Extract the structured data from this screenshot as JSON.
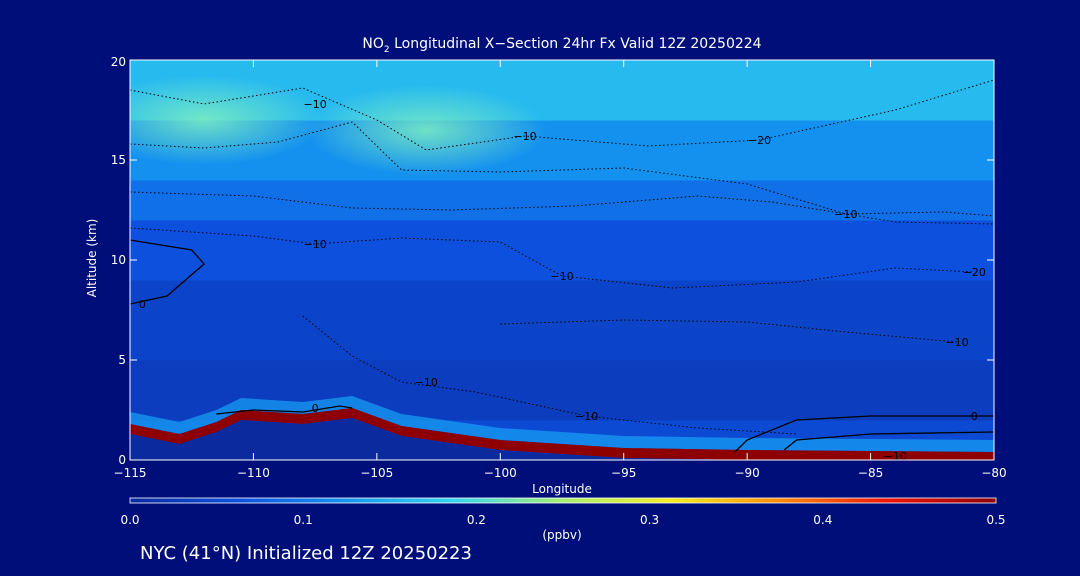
{
  "chart_data": {
    "type": "heatmap",
    "title_main": "NO",
    "title_sub": "2",
    "title_rest": " Longitudinal X−Section 24hr  Fx Valid 12Z 20250224",
    "xlabel": "Longitude",
    "ylabel": "Altitude (km)",
    "xlim": [
      -115,
      -80
    ],
    "ylim": [
      0,
      20
    ],
    "x_ticks": [
      -115,
      -110,
      -105,
      -100,
      -95,
      -90,
      -85,
      -80
    ],
    "x_tick_labels": [
      "−115",
      "−110",
      "−105",
      "−100",
      "−95",
      "−90",
      "−85",
      "−80"
    ],
    "y_ticks": [
      0,
      5,
      10,
      15,
      20
    ],
    "y_tick_labels": [
      "0",
      "5",
      "10",
      "15",
      "20"
    ],
    "colorbar": {
      "label": "(ppbv)",
      "range": [
        0.0,
        0.5
      ],
      "ticks": [
        0.0,
        0.1,
        0.2,
        0.3,
        0.4,
        0.5
      ],
      "tick_labels": [
        "0.0",
        "0.1",
        "0.2",
        "0.3",
        "0.4",
        "0.5"
      ],
      "colors": [
        "#0a2a9e",
        "#0c52e0",
        "#1596f0",
        "#35d6ee",
        "#a6f070",
        "#f5ee20",
        "#ff8a00",
        "#f01400",
        "#8e0000"
      ]
    },
    "layers": [
      {
        "altitude_range": [
          0,
          2
        ],
        "value": 0.05
      },
      {
        "altitude_range": [
          2,
          5
        ],
        "value": 0.03
      },
      {
        "altitude_range": [
          5,
          9
        ],
        "value": 0.04
      },
      {
        "altitude_range": [
          9,
          12
        ],
        "value": 0.06
      },
      {
        "altitude_range": [
          12,
          14
        ],
        "value": 0.09
      },
      {
        "altitude_range": [
          14,
          17
        ],
        "value": 0.12
      },
      {
        "altitude_range": [
          17,
          20
        ],
        "value": 0.16
      }
    ],
    "highlights": [
      {
        "longitude": -112,
        "altitude": 17,
        "value": 0.22
      },
      {
        "longitude": -103,
        "altitude": 16.5,
        "value": 0.21
      }
    ],
    "terrain_km": [
      {
        "lon": -115,
        "alt": 1.8
      },
      {
        "lon": -113,
        "alt": 1.3
      },
      {
        "lon": -111.5,
        "alt": 1.9
      },
      {
        "lon": -110.5,
        "alt": 2.5
      },
      {
        "lon": -108,
        "alt": 2.3
      },
      {
        "lon": -106,
        "alt": 2.6
      },
      {
        "lon": -104,
        "alt": 1.7
      },
      {
        "lon": -100,
        "alt": 1.0
      },
      {
        "lon": -95,
        "alt": 0.6
      },
      {
        "lon": -90,
        "alt": 0.5
      },
      {
        "lon": -80,
        "alt": 0.4
      }
    ],
    "surface_value": 0.5,
    "contour_labels": [
      {
        "text": "−10",
        "lon": -107.5,
        "alt": 17.8
      },
      {
        "text": "−10",
        "lon": -99,
        "alt": 16.2
      },
      {
        "text": "−20",
        "lon": -89.5,
        "alt": 16.0
      },
      {
        "text": "−10",
        "lon": -107.5,
        "alt": 10.8
      },
      {
        "text": "−10",
        "lon": -86,
        "alt": 12.3
      },
      {
        "text": "−10",
        "lon": -97.5,
        "alt": 9.2
      },
      {
        "text": "−20",
        "lon": -80.8,
        "alt": 9.4
      },
      {
        "text": "−10",
        "lon": -81.5,
        "alt": 5.9
      },
      {
        "text": "−10",
        "lon": -103,
        "alt": 3.9
      },
      {
        "text": "−10",
        "lon": -96.5,
        "alt": 2.2
      },
      {
        "text": "0",
        "lon": -107.5,
        "alt": 2.6
      },
      {
        "text": "0",
        "lon": -114.5,
        "alt": 7.8
      },
      {
        "text": "0",
        "lon": -80.8,
        "alt": 2.2
      },
      {
        "text": "−10",
        "lon": -84,
        "alt": 0.2
      }
    ]
  },
  "footer": "NYC (41°N) Initialized 12Z 20250223"
}
